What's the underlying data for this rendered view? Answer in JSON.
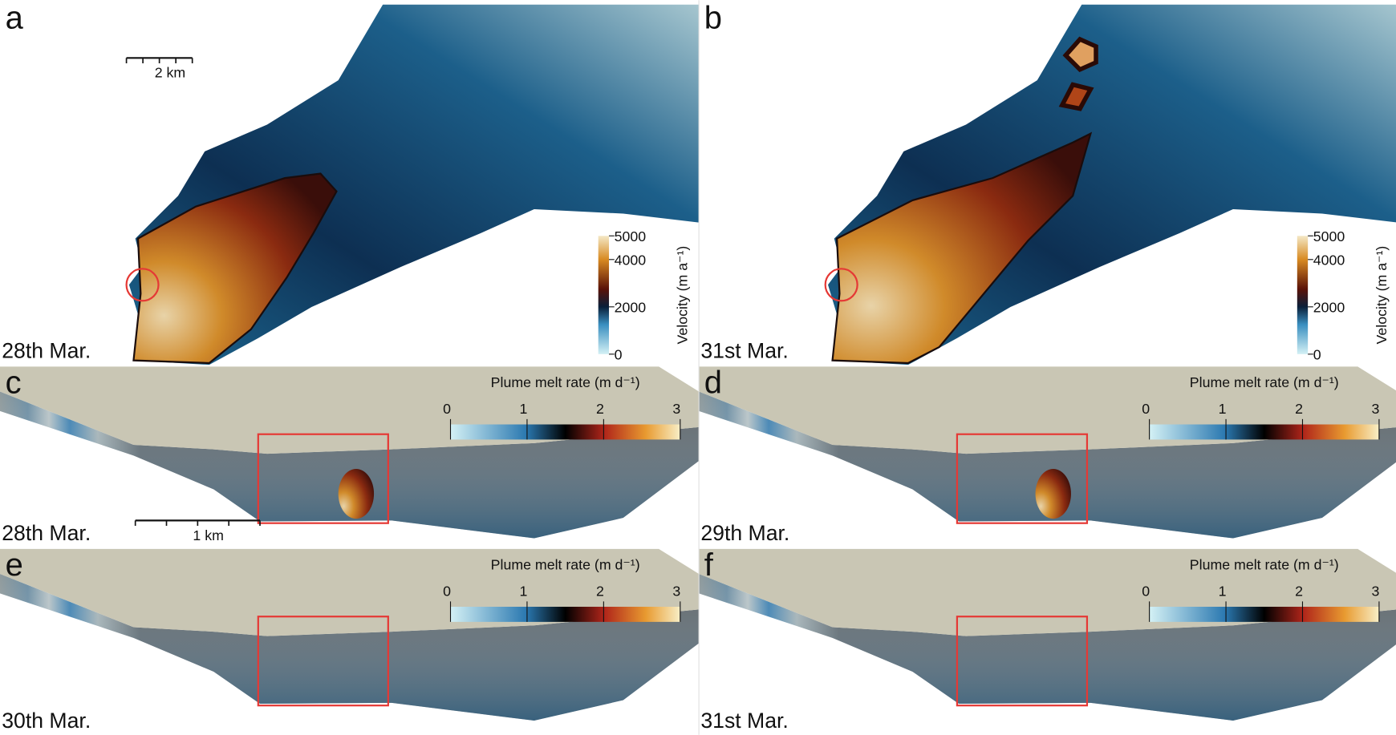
{
  "panels": [
    {
      "label": "a",
      "date": "28th Mar.",
      "scale_bar": "2 km",
      "colorbar": {
        "title": "Velocity (m a⁻¹)",
        "range": [
          0,
          5000
        ],
        "ticks": [
          0,
          2000,
          4000,
          5000
        ]
      }
    },
    {
      "label": "b",
      "date": "31st Mar.",
      "colorbar": {
        "title": "Velocity (m a⁻¹)",
        "range": [
          0,
          5000
        ],
        "ticks": [
          0,
          2000,
          4000,
          5000
        ]
      }
    },
    {
      "label": "c",
      "date": "28th Mar.",
      "scale_bar": "1 km",
      "colorbar": {
        "title": "Plume melt rate (m d⁻¹)",
        "range": [
          0,
          3
        ],
        "ticks": [
          0,
          1,
          2,
          3
        ]
      }
    },
    {
      "label": "d",
      "date": "29th Mar.",
      "colorbar": {
        "title": "Plume melt rate (m d⁻¹)",
        "range": [
          0,
          3
        ],
        "ticks": [
          0,
          1,
          2,
          3
        ]
      }
    },
    {
      "label": "e",
      "date": "30th Mar.",
      "colorbar": {
        "title": "Plume melt rate (m d⁻¹)",
        "range": [
          0,
          3
        ],
        "ticks": [
          0,
          1,
          2,
          3
        ]
      }
    },
    {
      "label": "f",
      "date": "31st Mar.",
      "colorbar": {
        "title": "Plume melt rate (m d⁻¹)",
        "range": [
          0,
          3
        ],
        "ticks": [
          0,
          1,
          2,
          3
        ]
      }
    }
  ]
}
